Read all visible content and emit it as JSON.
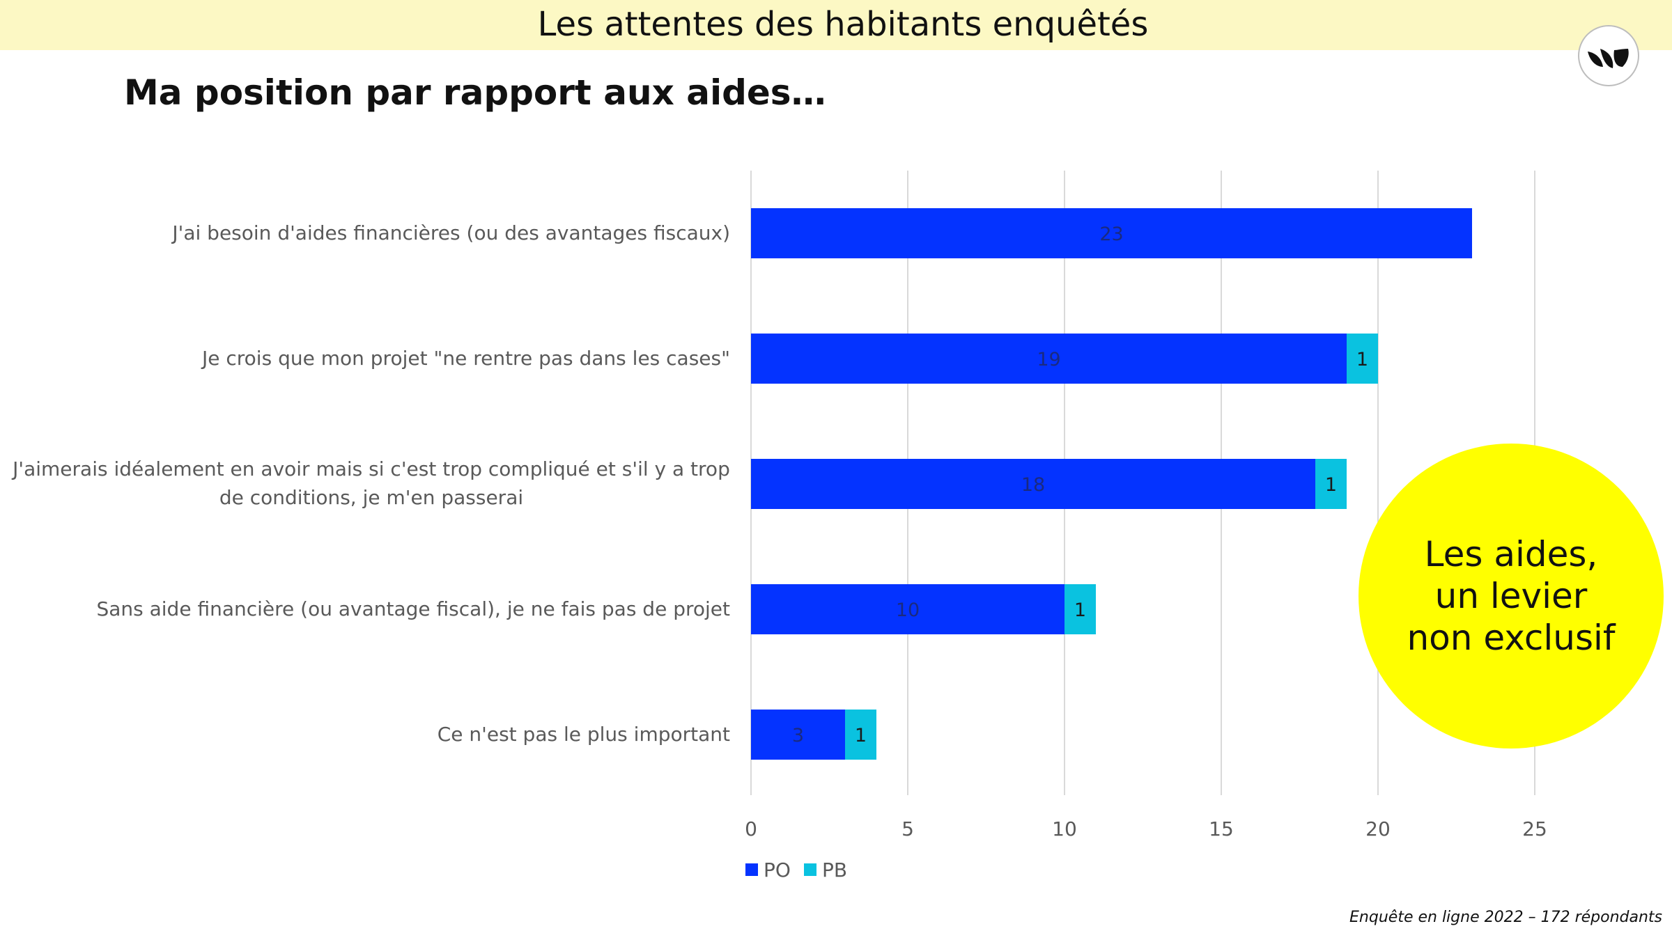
{
  "header": {
    "banner_title": "Les attentes des habitants enquêtés",
    "subtitle": "Ma position par rapport aux aides…"
  },
  "logo": {
    "icon": "leaf-logo-icon"
  },
  "callout": {
    "text": "Les aides, un levier non exclusif"
  },
  "footnote": "Enquête en ligne  2022 – 172 répondants",
  "colors": {
    "banner": "#fcf8c4",
    "po": "#0433ff",
    "pb": "#0ac2e0",
    "callout": "#ffff00"
  },
  "chart_data": {
    "type": "bar",
    "orientation": "horizontal",
    "stacked": true,
    "categories": [
      "J'ai besoin d'aides financières (ou des avantages fiscaux)",
      "Je crois que mon projet \"ne rentre pas dans les cases\"",
      "J'aimerais idéalement en avoir mais si c'est trop compliqué et s'il y a trop de conditions, je m'en passerai",
      "Sans aide financière (ou avantage fiscal), je ne fais pas de projet",
      "Ce n'est pas le plus important"
    ],
    "series": [
      {
        "name": "PO",
        "values": [
          23,
          19,
          18,
          10,
          3
        ]
      },
      {
        "name": "PB",
        "values": [
          0,
          1,
          1,
          1,
          1
        ]
      }
    ],
    "xlim": [
      0,
      28
    ],
    "xticks": [
      0,
      5,
      10,
      15,
      20,
      25
    ],
    "grid": true,
    "legend": "bottom-left",
    "data_labels": true
  }
}
